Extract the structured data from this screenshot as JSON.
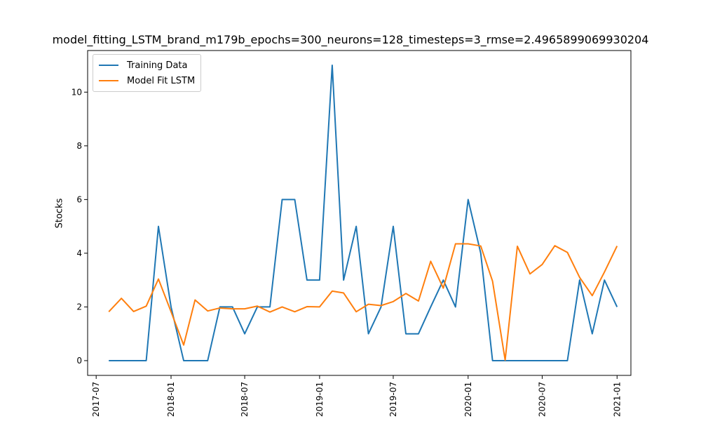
{
  "chart_data": {
    "type": "line",
    "title": "model_fitting_LSTM_brand_m179b_epochs=300_neurons=128_timesteps=3_rmse=2.4965899069930204",
    "xlabel": "",
    "ylabel": "Stocks",
    "xlim": [
      "2017-06-10",
      "2021-02-04"
    ],
    "ylim": [
      -0.55,
      11.55
    ],
    "x_ticks": [
      "2017-07",
      "2018-01",
      "2018-07",
      "2019-01",
      "2019-07",
      "2020-01",
      "2020-07",
      "2021-01"
    ],
    "y_ticks": [
      0,
      2,
      4,
      6,
      8,
      10
    ],
    "legend_position": "upper-left",
    "grid": false,
    "x": [
      "2017-08-01",
      "2017-09-01",
      "2017-10-01",
      "2017-11-01",
      "2017-12-01",
      "2018-01-01",
      "2018-02-01",
      "2018-03-01",
      "2018-04-01",
      "2018-05-01",
      "2018-06-01",
      "2018-07-01",
      "2018-08-01",
      "2018-09-01",
      "2018-10-01",
      "2018-11-01",
      "2018-12-01",
      "2019-01-01",
      "2019-02-01",
      "2019-03-01",
      "2019-04-01",
      "2019-05-01",
      "2019-06-01",
      "2019-07-01",
      "2019-08-01",
      "2019-09-01",
      "2019-10-01",
      "2019-11-01",
      "2019-12-01",
      "2020-01-01",
      "2020-02-01",
      "2020-03-01",
      "2020-04-01",
      "2020-05-01",
      "2020-06-01",
      "2020-07-01",
      "2020-08-01",
      "2020-09-01",
      "2020-10-01",
      "2020-11-01",
      "2020-12-01",
      "2021-01-01"
    ],
    "series": [
      {
        "name": "Training Data",
        "color": "#1f77b4",
        "values": [
          0,
          0,
          0,
          0,
          5,
          2,
          0,
          0,
          0,
          2,
          2,
          1,
          2,
          2,
          6,
          6,
          3,
          3,
          11,
          3,
          5,
          1,
          2,
          5,
          1,
          1,
          2,
          3,
          2,
          6,
          4,
          0,
          0,
          0,
          0,
          0,
          0,
          0,
          3,
          1,
          3,
          2
        ]
      },
      {
        "name": "Model Fit LSTM",
        "color": "#ff7f0e",
        "values": [
          1.82,
          2.32,
          1.83,
          2.03,
          3.04,
          1.82,
          0.58,
          2.26,
          1.85,
          1.96,
          1.93,
          1.93,
          2.03,
          1.81,
          2.0,
          1.82,
          2.01,
          2.0,
          2.59,
          2.52,
          1.82,
          2.1,
          2.05,
          2.2,
          2.5,
          2.22,
          3.7,
          2.7,
          4.35,
          4.35,
          4.27,
          2.96,
          0.02,
          4.26,
          3.23,
          3.58,
          4.28,
          4.03,
          3.1,
          2.42,
          3.3,
          4.27
        ]
      }
    ]
  }
}
